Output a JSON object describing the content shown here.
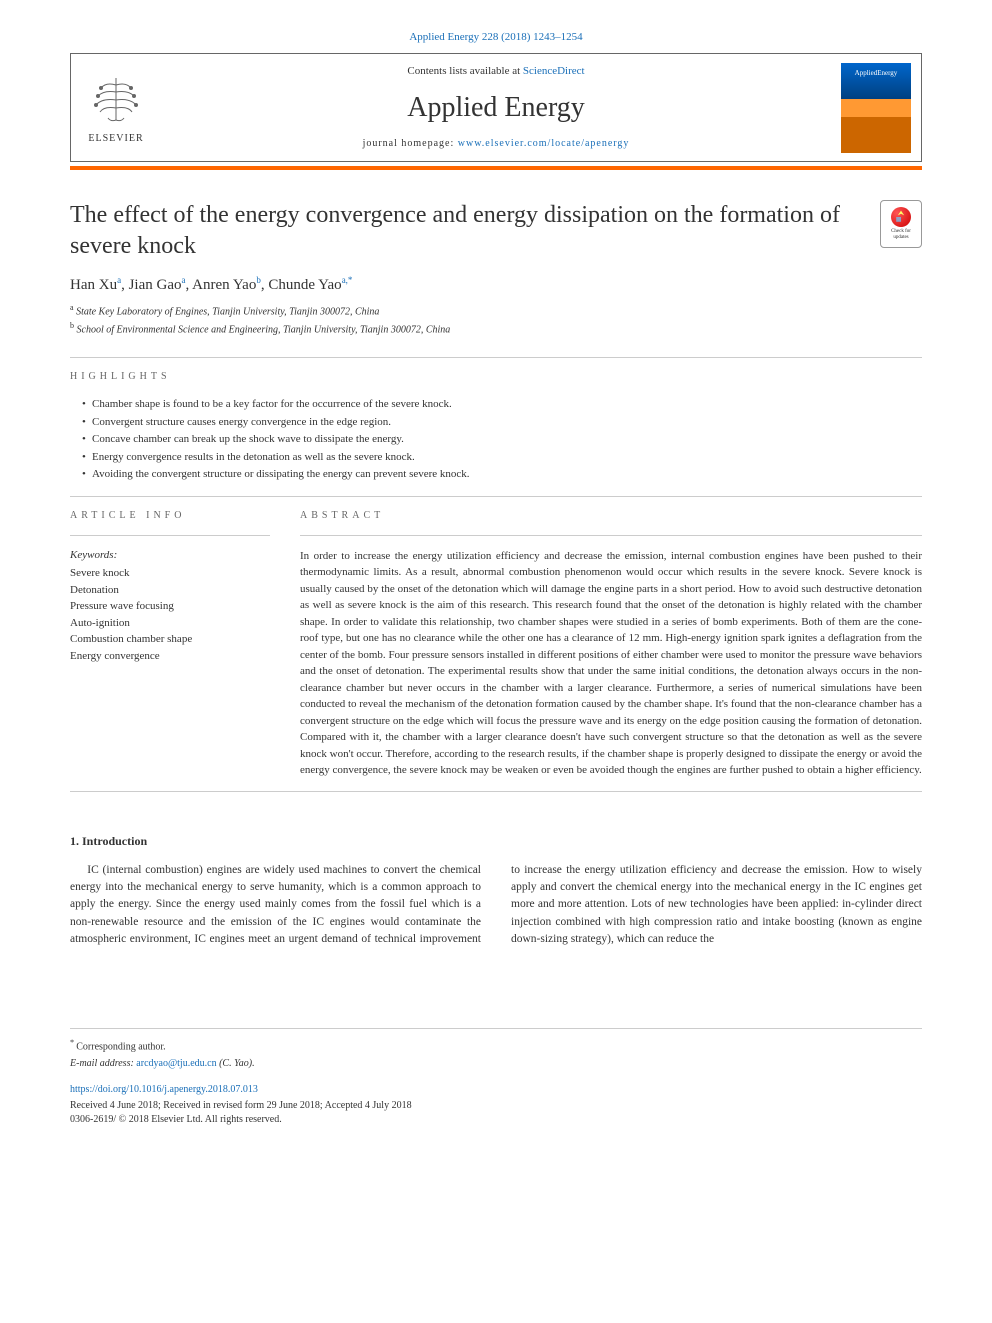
{
  "header": {
    "citation": "Applied Energy 228 (2018) 1243–1254",
    "contents_prefix": "Contents lists available at ",
    "contents_link": "ScienceDirect",
    "journal_name": "Applied Energy",
    "homepage_prefix": "journal homepage: ",
    "homepage_url": "www.elsevier.com/locate/apenergy",
    "publisher_label": "ELSEVIER",
    "cover_title": "AppliedEnergy"
  },
  "article": {
    "title": "The effect of the energy convergence and energy dissipation on the formation of severe knock",
    "check_updates": "Check for updates",
    "authors_html": "Han Xu<sup>a</sup>, Jian Gao<sup>a</sup>, Anren Yao<sup>b</sup>, Chunde Yao<sup>a,*</sup>",
    "affiliations": [
      {
        "sup": "a",
        "text": "State Key Laboratory of Engines, Tianjin University, Tianjin 300072, China"
      },
      {
        "sup": "b",
        "text": "School of Environmental Science and Engineering, Tianjin University, Tianjin 300072, China"
      }
    ]
  },
  "highlights": {
    "label": "HIGHLIGHTS",
    "items": [
      "Chamber shape is found to be a key factor for the occurrence of the severe knock.",
      "Convergent structure causes energy convergence in the edge region.",
      "Concave chamber can break up the shock wave to dissipate the energy.",
      "Energy convergence results in the detonation as well as the severe knock.",
      "Avoiding the convergent structure or dissipating the energy can prevent severe knock."
    ]
  },
  "article_info": {
    "label": "ARTICLE INFO",
    "keywords_label": "Keywords:",
    "keywords": [
      "Severe knock",
      "Detonation",
      "Pressure wave focusing",
      "Auto-ignition",
      "Combustion chamber shape",
      "Energy convergence"
    ]
  },
  "abstract": {
    "label": "ABSTRACT",
    "text": "In order to increase the energy utilization efficiency and decrease the emission, internal combustion engines have been pushed to their thermodynamic limits. As a result, abnormal combustion phenomenon would occur which results in the severe knock. Severe knock is usually caused by the onset of the detonation which will damage the engine parts in a short period. How to avoid such destructive detonation as well as severe knock is the aim of this research. This research found that the onset of the detonation is highly related with the chamber shape. In order to validate this relationship, two chamber shapes were studied in a series of bomb experiments. Both of them are the cone-roof type, but one has no clearance while the other one has a clearance of 12 mm. High-energy ignition spark ignites a deflagration from the center of the bomb. Four pressure sensors installed in different positions of either chamber were used to monitor the pressure wave behaviors and the onset of detonation. The experimental results show that under the same initial conditions, the detonation always occurs in the non-clearance chamber but never occurs in the chamber with a larger clearance. Furthermore, a series of numerical simulations have been conducted to reveal the mechanism of the detonation formation caused by the chamber shape. It's found that the non-clearance chamber has a convergent structure on the edge which will focus the pressure wave and its energy on the edge position causing the formation of detonation. Compared with it, the chamber with a larger clearance doesn't have such convergent structure so that the detonation as well as the severe knock won't occur. Therefore, according to the research results, if the chamber shape is properly designed to dissipate the energy or avoid the energy convergence, the severe knock may be weaken or even be avoided though the engines are further pushed to obtain a higher efficiency."
  },
  "introduction": {
    "heading": "1. Introduction",
    "para1": "IC (internal combustion) engines are widely used machines to convert the chemical energy into the mechanical energy to serve humanity, which is a common approach to apply the energy. Since the energy used mainly comes from the fossil fuel which is a non-renewable resource and the emission of the IC engines would contaminate the",
    "para2": "atmospheric environment, IC engines meet an urgent demand of technical improvement to increase the energy utilization efficiency and decrease the emission. How to wisely apply and convert the chemical energy into the mechanical energy in the IC engines get more and more attention. Lots of new technologies have been applied: in-cylinder direct injection combined with high compression ratio and intake boosting (known as engine down-sizing strategy), which can reduce the"
  },
  "footer": {
    "corresponding_marker": "* ",
    "corresponding_text": "Corresponding author.",
    "email_label": "E-mail address: ",
    "email": "arcdyao@tju.edu.cn",
    "email_author": " (C. Yao).",
    "doi": "https://doi.org/10.1016/j.apenergy.2018.07.013",
    "dates": "Received 4 June 2018; Received in revised form 29 June 2018; Accepted 4 July 2018",
    "copyright": "0306-2619/ © 2018 Elsevier Ltd. All rights reserved."
  }
}
